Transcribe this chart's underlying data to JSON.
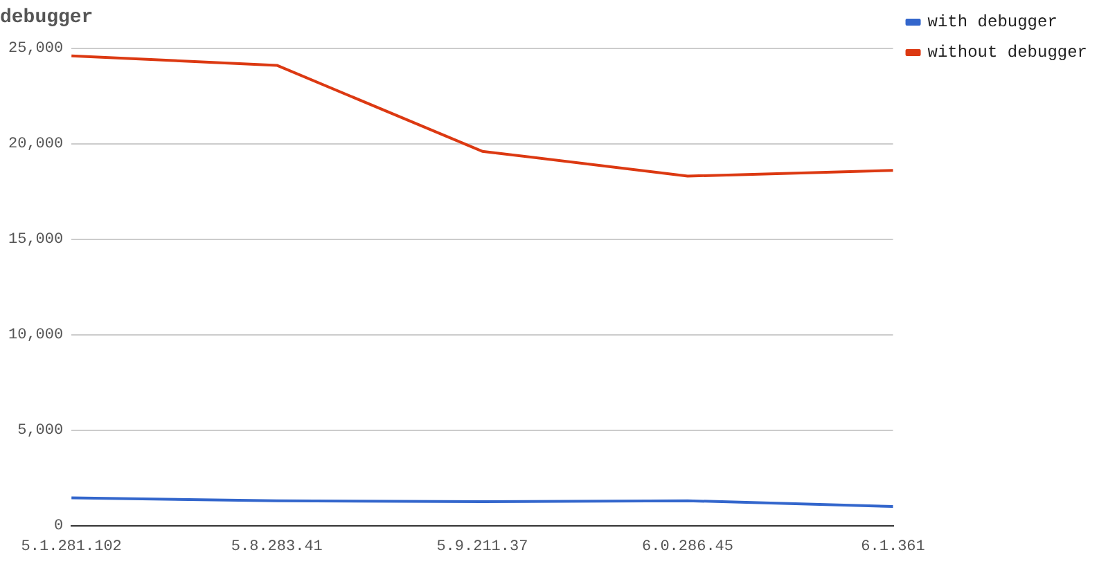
{
  "chart_data": {
    "type": "line",
    "title": "debugger",
    "categories": [
      "5.1.281.102",
      "5.8.283.41",
      "5.9.211.37",
      "6.0.286.45",
      "6.1.361"
    ],
    "series": [
      {
        "name": "with debugger",
        "color": "#3366cc",
        "values": [
          1450,
          1300,
          1250,
          1300,
          1000
        ]
      },
      {
        "name": "without debugger",
        "color": "#dc3912",
        "values": [
          24600,
          24100,
          19600,
          18300,
          18600
        ]
      }
    ],
    "ylim": [
      0,
      25000
    ],
    "yticks": [
      {
        "value": 0,
        "label": "0"
      },
      {
        "value": 5000,
        "label": "5,000"
      },
      {
        "value": 10000,
        "label": "10,000"
      },
      {
        "value": 15000,
        "label": "15,000"
      },
      {
        "value": 20000,
        "label": "20,000"
      },
      {
        "value": 25000,
        "label": "25,000"
      }
    ],
    "grid": "y",
    "legend": "right",
    "marker": "none",
    "line_style": "solid"
  }
}
